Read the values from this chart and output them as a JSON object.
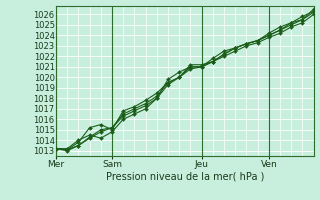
{
  "title": "Pression niveau de la mer( hPa )",
  "bg_color": "#c8eedd",
  "grid_color": "#aaddcc",
  "line_color": "#1a5e1a",
  "marker_color": "#1a5e1a",
  "ylim": [
    1012.5,
    1026.8
  ],
  "yticks": [
    1013,
    1014,
    1015,
    1016,
    1017,
    1018,
    1019,
    1020,
    1021,
    1022,
    1023,
    1024,
    1025,
    1026
  ],
  "day_labels": [
    "Mer",
    "Sam",
    "Jeu",
    "Ven"
  ],
  "day_positions": [
    0,
    5,
    13,
    19
  ],
  "n_points": 24,
  "lines": [
    [
      1013.2,
      1013.0,
      1013.5,
      1014.3,
      1015.0,
      1015.2,
      1016.5,
      1017.0,
      1017.5,
      1018.2,
      1019.5,
      1020.0,
      1020.8,
      1021.0,
      1021.5,
      1022.2,
      1022.8,
      1023.2,
      1023.5,
      1024.0,
      1024.5,
      1025.2,
      1025.5,
      1026.2
    ],
    [
      1013.2,
      1013.2,
      1014.0,
      1014.5,
      1014.2,
      1014.8,
      1016.0,
      1016.5,
      1017.0,
      1018.0,
      1019.8,
      1020.5,
      1021.0,
      1021.0,
      1021.8,
      1022.5,
      1022.8,
      1023.2,
      1023.5,
      1024.0,
      1024.5,
      1025.0,
      1025.5,
      1026.5
    ],
    [
      1013.2,
      1013.1,
      1013.8,
      1015.2,
      1015.5,
      1015.0,
      1016.8,
      1017.2,
      1017.8,
      1018.5,
      1019.5,
      1020.0,
      1021.2,
      1021.2,
      1021.5,
      1022.2,
      1022.8,
      1023.2,
      1023.5,
      1024.2,
      1024.8,
      1025.2,
      1025.8,
      1026.3
    ],
    [
      1013.2,
      1013.1,
      1013.5,
      1014.2,
      1014.8,
      1015.2,
      1016.3,
      1016.8,
      1017.3,
      1018.0,
      1019.3,
      1020.0,
      1021.0,
      1021.0,
      1021.5,
      1022.0,
      1022.5,
      1023.0,
      1023.3,
      1023.8,
      1024.2,
      1024.8,
      1025.2,
      1026.0
    ]
  ]
}
